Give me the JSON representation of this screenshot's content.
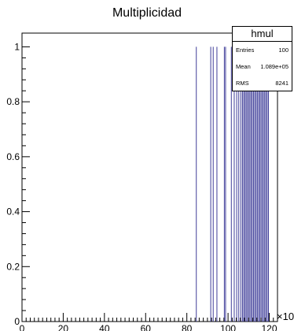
{
  "chart_data": {
    "type": "histogram",
    "title": "Multiplicidad",
    "xlim": [
      0,
      124000
    ],
    "ylim": [
      0,
      1.05
    ],
    "x_exponent_label": "×10",
    "x_exponent_power": "3",
    "x_ticks": [
      0,
      20,
      40,
      60,
      80,
      100,
      120
    ],
    "y_ticks": [
      0,
      0.2,
      0.4,
      0.6,
      0.8,
      1
    ],
    "y_tick_labels": [
      "0",
      "0.2",
      "0.4",
      "0.6",
      "0.8",
      "1"
    ],
    "line_color": "#3f3d99",
    "bins_x_thousands": [
      84.6,
      91.6,
      92.8,
      94.6,
      98.2,
      98.8,
      101.6,
      103.0,
      104.2,
      105.2,
      106.2,
      107.0,
      107.6,
      108.2,
      108.8,
      109.4,
      110.0,
      110.6,
      111.2,
      111.8,
      112.4,
      113.0,
      113.6,
      114.2,
      114.8,
      115.4,
      116.0,
      116.6,
      117.2,
      117.8,
      118.4,
      119.0,
      119.6
    ],
    "bin_value": 1,
    "stats": {
      "name": "hmul",
      "entries_label": "Entries",
      "entries": "100",
      "mean_label": "Mean",
      "mean": "1.089e+05",
      "rms_label": "RMS",
      "rms": "8241"
    }
  }
}
